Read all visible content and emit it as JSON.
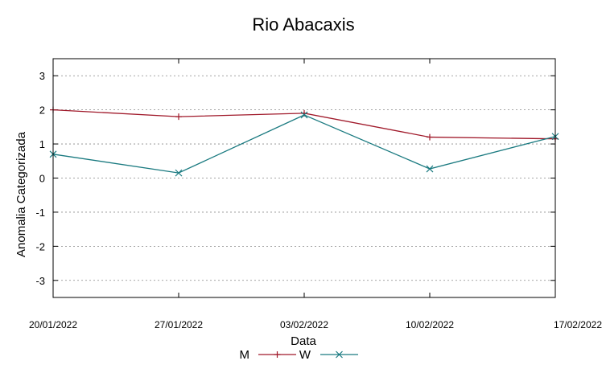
{
  "chart_data": {
    "type": "line",
    "title": "Rio Abacaxis",
    "xlabel": "Data",
    "ylabel": "Anomalia Categorizada",
    "categories": [
      "20/01/2022",
      "27/01/2022",
      "03/02/2022",
      "10/02/2022",
      "17/02/2022"
    ],
    "ylim": [
      -3.5,
      3.5
    ],
    "yticks": [
      "3",
      "2",
      "1",
      "0",
      "-1",
      "-2",
      "-3"
    ],
    "grid": true,
    "legend_position": "bottom-center",
    "series": [
      {
        "name": "M",
        "color": "#a0192a",
        "marker": "plus",
        "values": [
          2.0,
          1.8,
          1.9,
          1.2,
          1.15
        ]
      },
      {
        "name": "W",
        "color": "#1a7a80",
        "marker": "cross",
        "values": [
          0.7,
          0.15,
          1.85,
          0.27,
          1.22
        ]
      }
    ]
  }
}
